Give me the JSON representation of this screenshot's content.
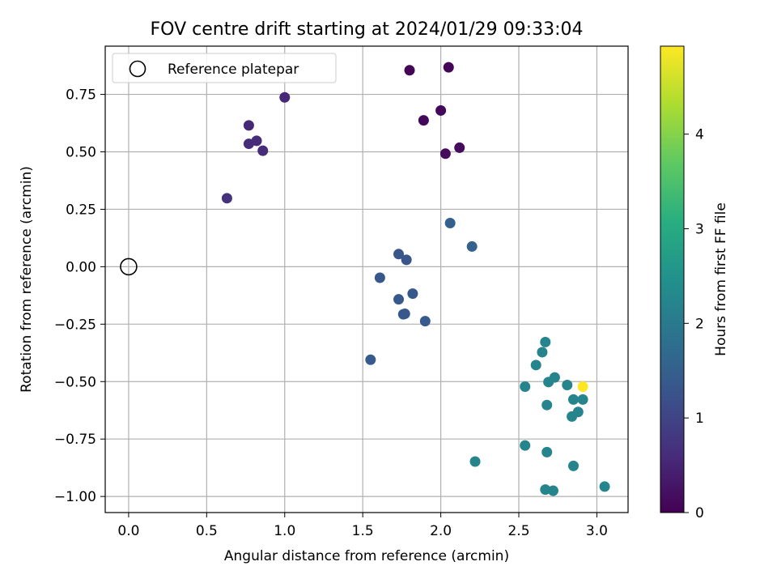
{
  "chart_data": {
    "type": "scatter",
    "title": "FOV centre drift starting at 2024/01/29 09:33:04",
    "xlabel": "Angular distance from reference (arcmin)",
    "ylabel": "Rotation from reference (arcmin)",
    "colorbar_label": "Hours from first FF file",
    "xlim": [
      -0.15,
      3.2
    ],
    "ylim": [
      -1.07,
      0.96
    ],
    "clim": [
      0,
      4.93
    ],
    "x_ticks": [
      0.0,
      0.5,
      1.0,
      1.5,
      2.0,
      2.5,
      3.0
    ],
    "x_tick_labels": [
      "0.0",
      "0.5",
      "1.0",
      "1.5",
      "2.0",
      "2.5",
      "3.0"
    ],
    "y_ticks": [
      0.75,
      0.5,
      0.25,
      0.0,
      -0.25,
      -0.5,
      -0.75,
      -1.0
    ],
    "y_tick_labels": [
      "0.75",
      "0.50",
      "0.25",
      "0.00",
      "−0.25",
      "−0.50",
      "−0.75",
      "−1.00"
    ],
    "colorbar_ticks": [
      0,
      1,
      2,
      3,
      4
    ],
    "colorbar_tick_labels": [
      "0",
      "1",
      "2",
      "3",
      "4"
    ],
    "colormap": "viridis",
    "grid": true,
    "legend_position": "top-left",
    "reference": {
      "name": "Reference platepar",
      "x": 0.0,
      "y": 0.0
    },
    "points": [
      {
        "x": 1.8,
        "y": 0.855,
        "c": 0.05
      },
      {
        "x": 2.05,
        "y": 0.868,
        "c": 0.05
      },
      {
        "x": 2.0,
        "y": 0.68,
        "c": 0.1
      },
      {
        "x": 1.89,
        "y": 0.637,
        "c": 0.1
      },
      {
        "x": 2.12,
        "y": 0.518,
        "c": 0.15
      },
      {
        "x": 2.03,
        "y": 0.492,
        "c": 0.15
      },
      {
        "x": 1.0,
        "y": 0.737,
        "c": 0.55
      },
      {
        "x": 0.77,
        "y": 0.615,
        "c": 0.55
      },
      {
        "x": 0.82,
        "y": 0.548,
        "c": 0.6
      },
      {
        "x": 0.77,
        "y": 0.535,
        "c": 0.6
      },
      {
        "x": 0.86,
        "y": 0.505,
        "c": 0.6
      },
      {
        "x": 0.63,
        "y": 0.298,
        "c": 0.7
      },
      {
        "x": 2.06,
        "y": 0.19,
        "c": 1.5
      },
      {
        "x": 2.2,
        "y": 0.088,
        "c": 1.55
      },
      {
        "x": 1.73,
        "y": 0.055,
        "c": 1.3
      },
      {
        "x": 1.78,
        "y": 0.03,
        "c": 1.3
      },
      {
        "x": 1.61,
        "y": -0.048,
        "c": 1.35
      },
      {
        "x": 1.82,
        "y": -0.117,
        "c": 1.35
      },
      {
        "x": 1.73,
        "y": -0.142,
        "c": 1.35
      },
      {
        "x": 1.77,
        "y": -0.205,
        "c": 1.35
      },
      {
        "x": 1.76,
        "y": -0.207,
        "c": 1.35
      },
      {
        "x": 1.9,
        "y": -0.237,
        "c": 1.4
      },
      {
        "x": 1.55,
        "y": -0.405,
        "c": 1.4
      },
      {
        "x": 2.67,
        "y": -0.328,
        "c": 2.2
      },
      {
        "x": 2.65,
        "y": -0.372,
        "c": 2.2
      },
      {
        "x": 2.61,
        "y": -0.428,
        "c": 2.2
      },
      {
        "x": 2.54,
        "y": -0.522,
        "c": 2.2
      },
      {
        "x": 2.73,
        "y": -0.482,
        "c": 2.2
      },
      {
        "x": 2.69,
        "y": -0.502,
        "c": 2.2
      },
      {
        "x": 2.81,
        "y": -0.515,
        "c": 2.2
      },
      {
        "x": 2.91,
        "y": -0.522,
        "c": 4.93
      },
      {
        "x": 2.85,
        "y": -0.578,
        "c": 2.2
      },
      {
        "x": 2.91,
        "y": -0.578,
        "c": 2.2
      },
      {
        "x": 2.68,
        "y": -0.602,
        "c": 2.2
      },
      {
        "x": 2.88,
        "y": -0.632,
        "c": 2.2
      },
      {
        "x": 2.84,
        "y": -0.652,
        "c": 2.2
      },
      {
        "x": 2.54,
        "y": -0.778,
        "c": 2.2
      },
      {
        "x": 2.68,
        "y": -0.807,
        "c": 2.2
      },
      {
        "x": 2.22,
        "y": -0.848,
        "c": 2.2
      },
      {
        "x": 2.85,
        "y": -0.867,
        "c": 2.2
      },
      {
        "x": 3.05,
        "y": -0.957,
        "c": 2.2
      },
      {
        "x": 2.67,
        "y": -0.97,
        "c": 2.2
      },
      {
        "x": 2.72,
        "y": -0.975,
        "c": 2.2
      }
    ]
  }
}
